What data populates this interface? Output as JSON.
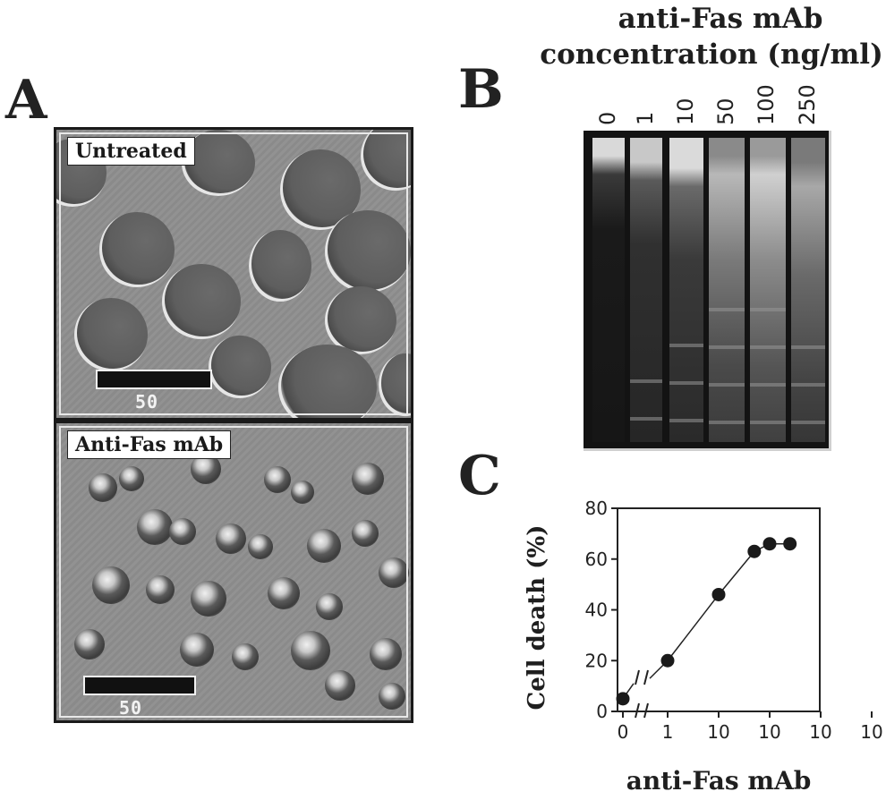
{
  "panel_a": {
    "letter": "A",
    "top_label": "Untreated",
    "bottom_label": "Anti-Fas mAb",
    "top_scale": "50",
    "bottom_scale": "50"
  },
  "panel_b": {
    "letter": "B",
    "header_line1": "anti-Fas mAb",
    "header_line2": "concentration (ng/ml)",
    "concentrations": [
      "0",
      "1",
      "10",
      "50",
      "100",
      "250"
    ]
  },
  "panel_c": {
    "letter": "C"
  },
  "chart_data": {
    "type": "line",
    "title": "",
    "ylabel": "Cell death (%)",
    "xlabel": "anti-Fas mAb",
    "x_scale": "log",
    "ylim": [
      0,
      80
    ],
    "yticks": [
      "0",
      "20",
      "40",
      "60",
      "80"
    ],
    "xtick_labels": [
      "0",
      "1",
      "10",
      "10",
      "10",
      "10"
    ],
    "series": [
      {
        "points": [
          {
            "x": 0,
            "y": 5
          },
          {
            "x": 1,
            "y": 20
          },
          {
            "x": 10,
            "y": 46
          },
          {
            "x": 50,
            "y": 63
          },
          {
            "x": 100,
            "y": 66
          },
          {
            "x": 250,
            "y": 66
          }
        ]
      }
    ],
    "grid": false
  }
}
